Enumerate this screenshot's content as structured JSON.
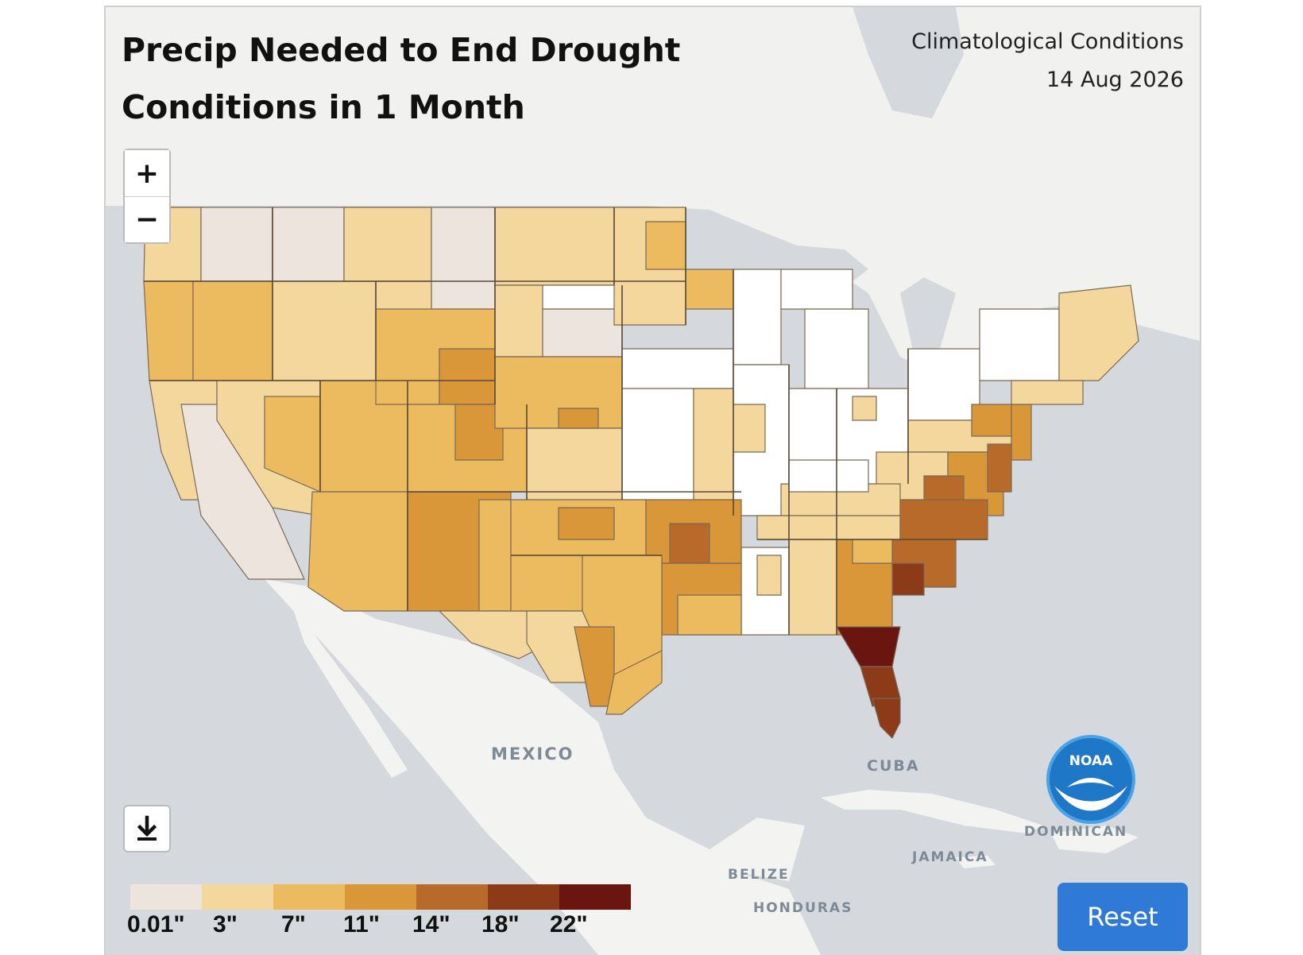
{
  "title": "Precip Needed to End Drought Conditions in 1 Month",
  "subtitle": {
    "line1": "Climatological Conditions",
    "line2": "14 Aug 2026"
  },
  "controls": {
    "zoom_in": "+",
    "zoom_out": "−",
    "reset_label": "Reset"
  },
  "icons": {
    "download": "download-icon",
    "logo": "noaa-logo"
  },
  "logo_text": "NOAA",
  "place_labels": {
    "mexico": "MEXICO",
    "cuba": "CUBA",
    "jamaica": "JAMAICA",
    "belize": "BELIZE",
    "honduras": "HONDURAS",
    "dominican": "DOMINICAN"
  },
  "legend": {
    "colors": [
      "#ede5dd",
      "#f4d79d",
      "#ecbb60",
      "#d9973a",
      "#b86a2a",
      "#8c3a17",
      "#6b1510"
    ],
    "labels": [
      "0.01\"",
      "3\"",
      "7\"",
      "11\"",
      "14\"",
      "18\"",
      "22\""
    ]
  },
  "colors": {
    "water": "#d5d9dd",
    "land": "#f3f3f1",
    "no_drought": "#ffffff"
  }
}
